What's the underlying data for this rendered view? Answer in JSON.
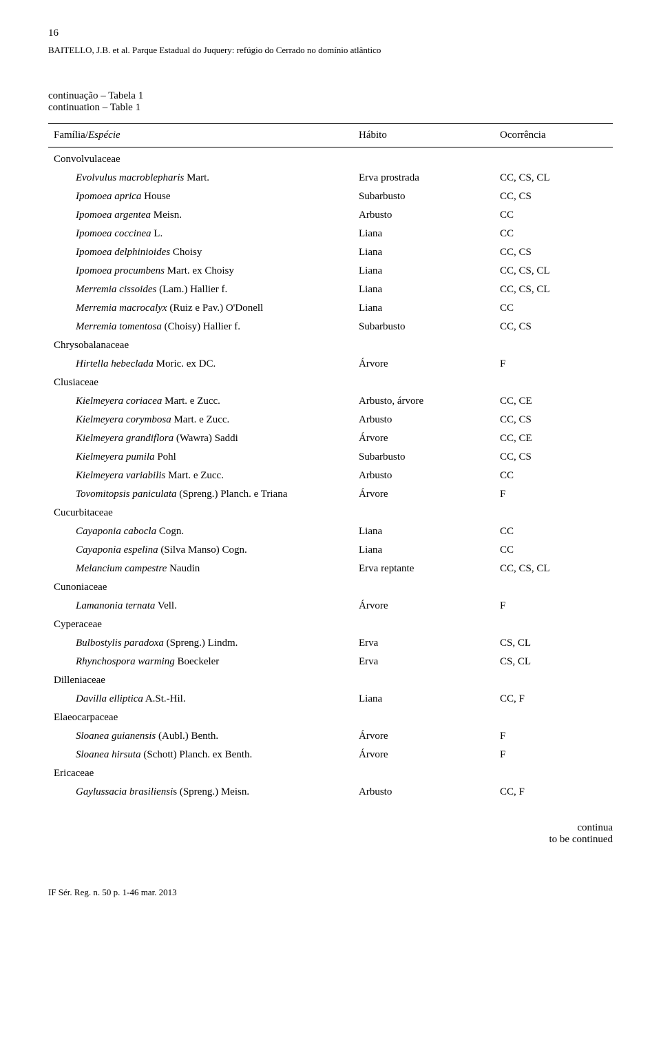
{
  "page_number": "16",
  "running_header": "BAITELLO, J.B. et al. Parque Estadual do Juquery: refúgio do Cerrado no domínio atlântico",
  "continuation": {
    "line1": "continuação – Tabela 1",
    "line2": "continuation – Table 1"
  },
  "table_header": {
    "species_plain": "Família/",
    "species_italic": "Espécie",
    "habit": "Hábito",
    "occurrence": "Ocorrência"
  },
  "rows": [
    {
      "type": "family",
      "html": "Convolvulaceae"
    },
    {
      "type": "species",
      "html": "<span class=\"italic\">Evolvulus macroblepharis</span> Mart.",
      "habit": "Erva prostrada",
      "occurrence": "CC, CS, CL"
    },
    {
      "type": "species",
      "html": "<span class=\"italic\">Ipomoea aprica</span> House",
      "habit": "Subarbusto",
      "occurrence": "CC, CS"
    },
    {
      "type": "species",
      "html": "<span class=\"italic\">Ipomoea argentea</span> Meisn.",
      "habit": "Arbusto",
      "occurrence": "CC"
    },
    {
      "type": "species",
      "html": "<span class=\"italic\">Ipomoea coccinea</span> L.",
      "habit": "Liana",
      "occurrence": "CC"
    },
    {
      "type": "species",
      "html": "<span class=\"italic\">Ipomoea delphinioides</span> Choisy",
      "habit": "Liana",
      "occurrence": "CC, CS"
    },
    {
      "type": "species",
      "html": "<span class=\"italic\">Ipomoea procumbens</span> Mart. ex Choisy",
      "habit": "Liana",
      "occurrence": "CC, CS, CL"
    },
    {
      "type": "species",
      "html": "<span class=\"italic\">Merremia cissoides</span> (Lam.) Hallier f.",
      "habit": "Liana",
      "occurrence": "CC, CS, CL"
    },
    {
      "type": "species",
      "html": "<span class=\"italic\">Merremia macrocalyx</span> (Ruiz e Pav.) O'Donell",
      "habit": "Liana",
      "occurrence": "CC"
    },
    {
      "type": "species",
      "html": "<span class=\"italic\">Merremia tomentosa</span> (Choisy) Hallier f.",
      "habit": "Subarbusto",
      "occurrence": "CC, CS"
    },
    {
      "type": "family",
      "html": "Chrysobalanaceae"
    },
    {
      "type": "species",
      "html": "<span class=\"italic\">Hirtella hebeclada</span> Moric. ex DC.",
      "habit": "Árvore",
      "occurrence": "F"
    },
    {
      "type": "family",
      "html": "Clusiaceae"
    },
    {
      "type": "species",
      "html": "<span class=\"italic\">Kielmeyera coriacea</span> Mart. e Zucc.",
      "habit": "Arbusto, árvore",
      "occurrence": "CC, CE"
    },
    {
      "type": "species",
      "html": "<span class=\"italic\">Kielmeyera corymbosa</span> Mart. e Zucc.",
      "habit": "Arbusto",
      "occurrence": "CC, CS"
    },
    {
      "type": "species",
      "html": "<span class=\"italic\">Kielmeyera grandiflora</span> (Wawra) Saddi",
      "habit": "Árvore",
      "occurrence": "CC, CE"
    },
    {
      "type": "species",
      "html": "<span class=\"italic\">Kielmeyera pumila</span> Pohl",
      "habit": "Subarbusto",
      "occurrence": "CC, CS"
    },
    {
      "type": "species",
      "html": "<span class=\"italic\">Kielmeyera variabilis</span> Mart. e Zucc.",
      "habit": "Arbusto",
      "occurrence": "CC"
    },
    {
      "type": "species",
      "html": "<span class=\"italic\">Tovomitopsis paniculata</span> (Spreng.) Planch. e Triana",
      "habit": "Árvore",
      "occurrence": "F"
    },
    {
      "type": "family",
      "html": "Cucurbitaceae"
    },
    {
      "type": "species",
      "html": "<span class=\"italic\">Cayaponia cabocla</span> Cogn.",
      "habit": "Liana",
      "occurrence": "CC"
    },
    {
      "type": "species",
      "html": "<span class=\"italic\">Cayaponia espelina</span> (Silva Manso) Cogn.",
      "habit": "Liana",
      "occurrence": "CC"
    },
    {
      "type": "species",
      "html": "<span class=\"italic\">Melancium campestre</span> Naudin",
      "habit": "Erva reptante",
      "occurrence": "CC, CS, CL"
    },
    {
      "type": "family",
      "html": "Cunoniaceae"
    },
    {
      "type": "species",
      "html": "<span class=\"italic\">Lamanonia ternata</span> Vell.",
      "habit": "Árvore",
      "occurrence": "F"
    },
    {
      "type": "family",
      "html": "Cyperaceae"
    },
    {
      "type": "species",
      "html": "<span class=\"italic\">Bulbostylis paradoxa</span> (Spreng.) Lindm.",
      "habit": "Erva",
      "occurrence": "CS, CL"
    },
    {
      "type": "species",
      "html": "<span class=\"italic\">Rhynchospora warming</span> Boeckeler",
      "habit": "Erva",
      "occurrence": "CS, CL"
    },
    {
      "type": "family",
      "html": "Dilleniaceae"
    },
    {
      "type": "species",
      "html": "<span class=\"italic\">Davilla elliptica</span> A.St.-Hil.",
      "habit": "Liana",
      "occurrence": "CC, F"
    },
    {
      "type": "family",
      "html": "Elaeocarpaceae"
    },
    {
      "type": "species",
      "html": "<span class=\"italic\">Sloanea guianensis</span> (Aubl.) Benth.",
      "habit": "Árvore",
      "occurrence": "F"
    },
    {
      "type": "species",
      "html": "<span class=\"italic\">Sloanea hirsuta</span> (Schott) Planch. ex Benth.",
      "habit": "Árvore",
      "occurrence": "F"
    },
    {
      "type": "family",
      "html": "Ericaceae"
    },
    {
      "type": "species",
      "html": "<span class=\"italic\">Gaylussacia brasiliensi</span>s (Spreng.) Meisn.",
      "habit": "Arbusto",
      "occurrence": "CC, F"
    }
  ],
  "continua": {
    "line1": "continua",
    "line2": "to be continued"
  },
  "footer": "IF Sér. Reg. n. 50 p. 1-46 mar. 2013"
}
